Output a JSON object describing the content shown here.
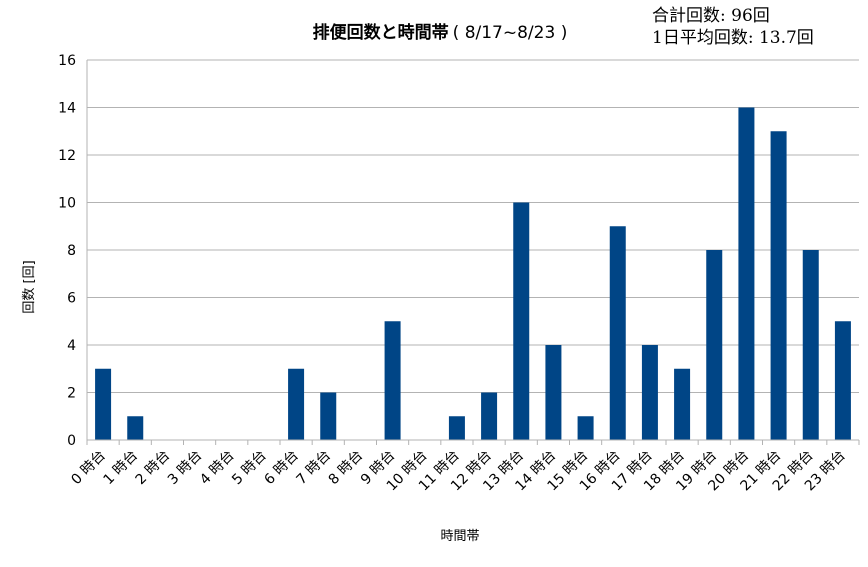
{
  "stats": {
    "total": "合計回数: 96回",
    "daily_avg": "1日平均回数: 13.7回"
  },
  "chart_data": {
    "type": "bar",
    "title": "排便回数と時間帯",
    "title_range": "( 8/17~8/23 )",
    "xlabel": "時間帯",
    "ylabel": "回数 [回]",
    "ylim": [
      0,
      16
    ],
    "yticks": [
      0,
      2,
      4,
      6,
      8,
      10,
      12,
      14,
      16
    ],
    "grid": true,
    "bar_color": "#004586",
    "categories": [
      "0 時台",
      "1 時台",
      "2 時台",
      "3 時台",
      "4 時台",
      "5 時台",
      "6 時台",
      "7 時台",
      "8 時台",
      "9 時台",
      "10 時台",
      "11 時台",
      "12 時台",
      "13 時台",
      "14 時台",
      "15 時台",
      "16 時台",
      "17 時台",
      "18 時台",
      "19 時台",
      "20 時台",
      "21 時台",
      "22 時台",
      "23 時台"
    ],
    "values": [
      3,
      1,
      0,
      0,
      0,
      0,
      3,
      2,
      0,
      5,
      0,
      1,
      2,
      10,
      4,
      1,
      9,
      4,
      3,
      8,
      14,
      13,
      8,
      5
    ]
  }
}
